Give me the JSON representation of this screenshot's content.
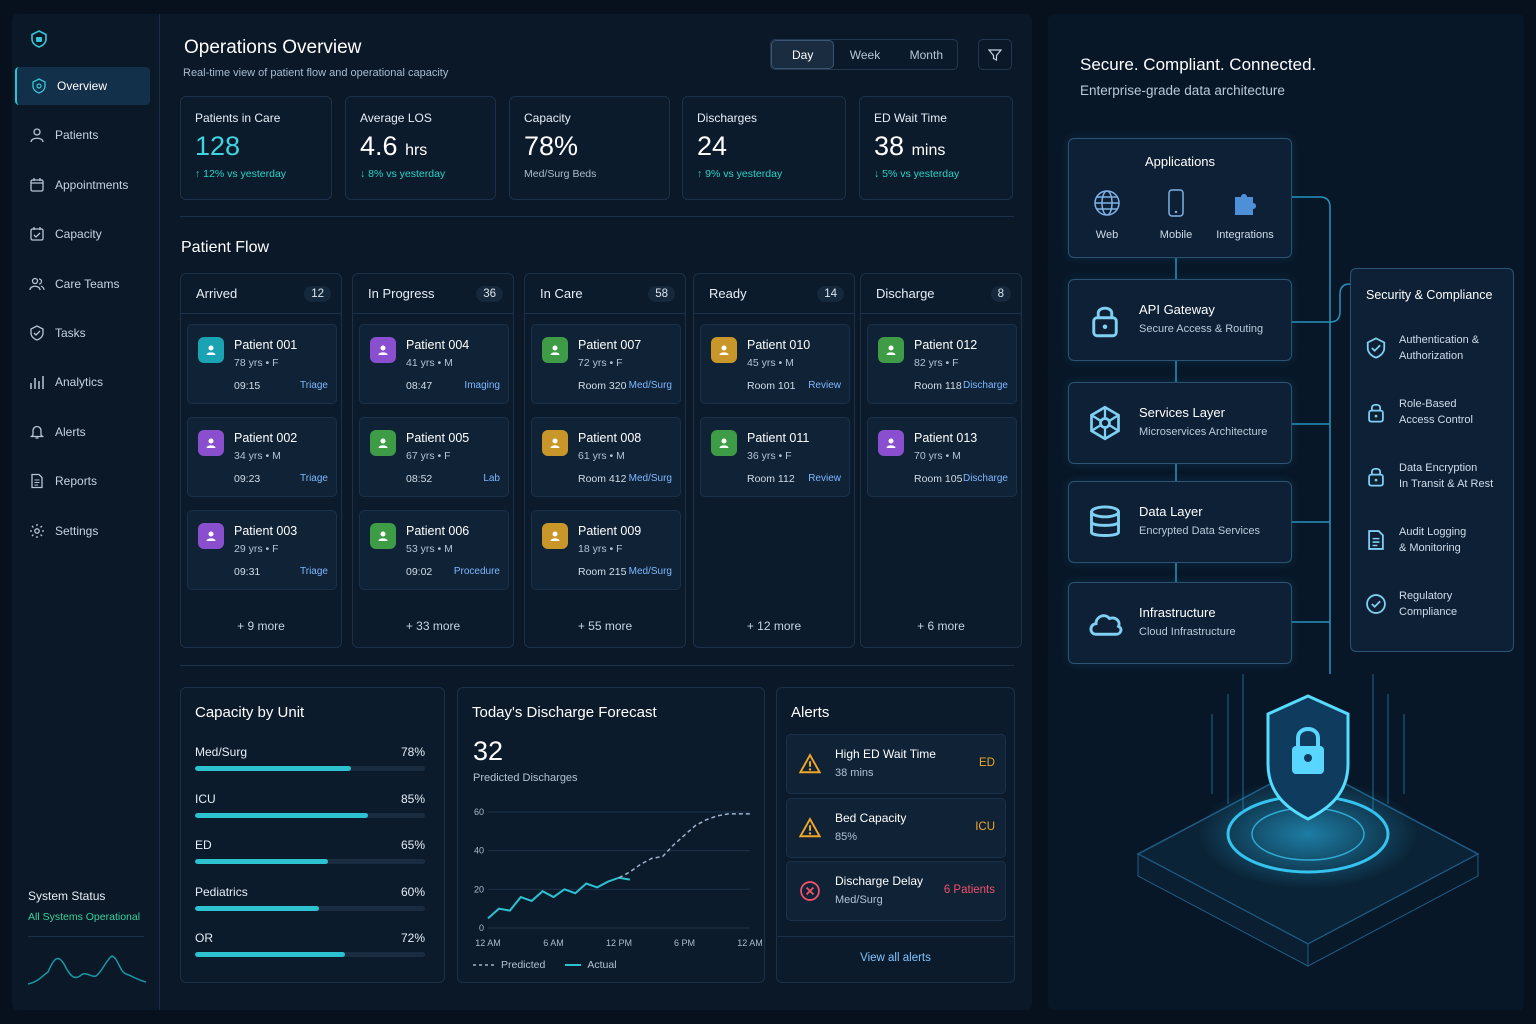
{
  "sidebar": {
    "items": [
      {
        "label": "Overview",
        "icon": "shield-home-icon",
        "active": true
      },
      {
        "label": "Patients",
        "icon": "user-icon"
      },
      {
        "label": "Appointments",
        "icon": "calendar-icon"
      },
      {
        "label": "Capacity",
        "icon": "calendar-check-icon"
      },
      {
        "label": "Care Teams",
        "icon": "users-icon"
      },
      {
        "label": "Tasks",
        "icon": "shield-check-icon"
      },
      {
        "label": "Analytics",
        "icon": "bar-chart-icon"
      },
      {
        "label": "Alerts",
        "icon": "bell-icon"
      },
      {
        "label": "Reports",
        "icon": "document-icon"
      },
      {
        "label": "Settings",
        "icon": "gear-icon"
      }
    ],
    "status_title": "System Status",
    "status_text": "All Systems Operational"
  },
  "header": {
    "title": "Operations Overview",
    "subtitle": "Real-time view of patient flow and operational capacity",
    "range": [
      "Day",
      "Week",
      "Month"
    ],
    "range_selected": "Day"
  },
  "kpis": [
    {
      "label": "Patients in Care",
      "value": "128",
      "unit": "",
      "delta": "↑ 12% vs yesterday",
      "accent": true
    },
    {
      "label": "Average LOS",
      "value": "4.6",
      "unit": "hrs",
      "delta": "↓ 8% vs yesterday"
    },
    {
      "label": "Capacity",
      "value": "78%",
      "unit": "",
      "delta": "Med/Surg Beds",
      "gray": true
    },
    {
      "label": "Discharges",
      "value": "24",
      "unit": "",
      "delta": "↑ 9% vs yesterday"
    },
    {
      "label": "ED Wait Time",
      "value": "38",
      "unit": "mins",
      "delta": "↓ 5% vs yesterday"
    }
  ],
  "patient_flow": {
    "title": "Patient Flow",
    "columns": [
      {
        "name": "Arrived",
        "count": "12",
        "more": "+ 9 more",
        "patients": [
          {
            "name": "Patient 001",
            "meta": "78 yrs • F",
            "time": "09:15",
            "tag": "Triage",
            "color": "#1aa3b3"
          },
          {
            "name": "Patient 002",
            "meta": "34 yrs • M",
            "time": "09:23",
            "tag": "Triage",
            "color": "#8a4fcf"
          },
          {
            "name": "Patient 003",
            "meta": "29 yrs • F",
            "time": "09:31",
            "tag": "Triage",
            "color": "#8a4fcf"
          }
        ]
      },
      {
        "name": "In Progress",
        "count": "36",
        "more": "+ 33 more",
        "patients": [
          {
            "name": "Patient 004",
            "meta": "41 yrs • M",
            "time": "08:47",
            "tag": "Imaging",
            "color": "#8a4fcf"
          },
          {
            "name": "Patient 005",
            "meta": "67 yrs • F",
            "time": "08:52",
            "tag": "Lab",
            "color": "#3e9c46"
          },
          {
            "name": "Patient 006",
            "meta": "53 yrs • M",
            "time": "09:02",
            "tag": "Procedure",
            "color": "#3e9c46"
          }
        ]
      },
      {
        "name": "In Care",
        "count": "58",
        "more": "+ 55 more",
        "patients": [
          {
            "name": "Patient 007",
            "meta": "72 yrs • F",
            "time": "Room 320",
            "tag": "Med/Surg",
            "color": "#3e9c46"
          },
          {
            "name": "Patient 008",
            "meta": "61 yrs • M",
            "time": "Room 412",
            "tag": "Med/Surg",
            "color": "#c9962a"
          },
          {
            "name": "Patient 009",
            "meta": "18 yrs • F",
            "time": "Room 215",
            "tag": "Med/Surg",
            "color": "#c9962a"
          }
        ]
      },
      {
        "name": "Ready",
        "count": "14",
        "more": "+ 12 more",
        "patients": [
          {
            "name": "Patient 010",
            "meta": "45 yrs • M",
            "time": "Room 101",
            "tag": "Review",
            "color": "#c9962a"
          },
          {
            "name": "Patient 011",
            "meta": "36 yrs • F",
            "time": "Room 112",
            "tag": "Review",
            "color": "#3e9c46"
          }
        ]
      },
      {
        "name": "Discharge",
        "count": "8",
        "more": "+ 6 more",
        "patients": [
          {
            "name": "Patient 012",
            "meta": "82 yrs • F",
            "time": "Room 118",
            "tag": "Discharge",
            "color": "#3e9c46"
          },
          {
            "name": "Patient 013",
            "meta": "70 yrs • M",
            "time": "Room 105",
            "tag": "Discharge",
            "color": "#8a4fcf"
          }
        ]
      }
    ]
  },
  "capacity": {
    "title": "Capacity by Unit",
    "units": [
      {
        "name": "Med/Surg",
        "pct": "78%",
        "fill": 0.68
      },
      {
        "name": "ICU",
        "pct": "85%",
        "fill": 0.75
      },
      {
        "name": "ED",
        "pct": "65%",
        "fill": 0.58
      },
      {
        "name": "Pediatrics",
        "pct": "60%",
        "fill": 0.54
      },
      {
        "name": "OR",
        "pct": "72%",
        "fill": 0.65
      }
    ]
  },
  "forecast": {
    "title": "Today's Discharge Forecast",
    "value": "32",
    "value_label": "Predicted Discharges",
    "legend_predicted": "Predicted",
    "legend_actual": "Actual"
  },
  "chart_data": {
    "type": "line",
    "title": "Today's Discharge Forecast",
    "x": [
      "12 AM",
      "6 AM",
      "12 PM",
      "6 PM",
      "12 AM"
    ],
    "ylim": [
      0,
      60
    ],
    "yticks": [
      0,
      20,
      40,
      60
    ],
    "series": [
      {
        "name": "Actual",
        "points": [
          [
            0,
            5
          ],
          [
            1,
            10
          ],
          [
            2,
            9
          ],
          [
            3,
            16
          ],
          [
            4,
            14
          ],
          [
            5,
            19
          ],
          [
            6,
            16
          ],
          [
            7,
            20
          ],
          [
            8,
            18
          ],
          [
            9,
            23
          ],
          [
            10,
            21
          ],
          [
            11,
            24
          ],
          [
            12,
            26
          ],
          [
            13,
            25
          ]
        ]
      },
      {
        "name": "Predicted",
        "points": [
          [
            12,
            26
          ],
          [
            13,
            29
          ],
          [
            14,
            33
          ],
          [
            15,
            36
          ],
          [
            16,
            37
          ],
          [
            17,
            43
          ],
          [
            18,
            48
          ],
          [
            19,
            53
          ],
          [
            20,
            56
          ],
          [
            21,
            58
          ],
          [
            22,
            59
          ],
          [
            23,
            59
          ],
          [
            24,
            59
          ]
        ]
      }
    ]
  },
  "alerts": {
    "title": "Alerts",
    "items": [
      {
        "title": "High ED Wait Time",
        "sub": "38 mins",
        "right": "ED",
        "color": "#f0a727",
        "icon": "warning-icon"
      },
      {
        "title": "Bed Capacity",
        "sub": "85%",
        "right": "ICU",
        "color": "#f0a727",
        "icon": "warning-icon"
      },
      {
        "title": "Discharge Delay",
        "sub": "Med/Surg",
        "right": "6 Patients",
        "color": "#f0516a",
        "icon": "x-circle-icon"
      }
    ],
    "view_all": "View all alerts"
  },
  "architecture": {
    "title": "Secure. Compliant. Connected.",
    "subtitle": "Enterprise-grade data architecture",
    "applications": {
      "title": "Applications",
      "items": [
        "Web",
        "Mobile",
        "Integrations"
      ]
    },
    "layers": [
      {
        "title": "API Gateway",
        "sub": "Secure Access & Routing",
        "icon": "lock-icon"
      },
      {
        "title": "Services Layer",
        "sub": "Microservices Architecture",
        "icon": "network-icon"
      },
      {
        "title": "Data Layer",
        "sub": "Encrypted Data Services",
        "icon": "database-icon"
      },
      {
        "title": "Infrastructure",
        "sub": "Cloud Infrastructure",
        "icon": "cloud-icon"
      }
    ],
    "security": {
      "title": "Security & Compliance",
      "items": [
        {
          "l1": "Authentication &",
          "l2": "Authorization",
          "icon": "shield-check-icon"
        },
        {
          "l1": "Role-Based",
          "l2": "Access Control",
          "icon": "lock-icon"
        },
        {
          "l1": "Data Encryption",
          "l2": "In Transit & At Rest",
          "icon": "lock-icon"
        },
        {
          "l1": "Audit Logging",
          "l2": "& Monitoring",
          "icon": "document-icon"
        },
        {
          "l1": "Regulatory",
          "l2": "Compliance",
          "icon": "check-circle-icon"
        }
      ]
    }
  }
}
